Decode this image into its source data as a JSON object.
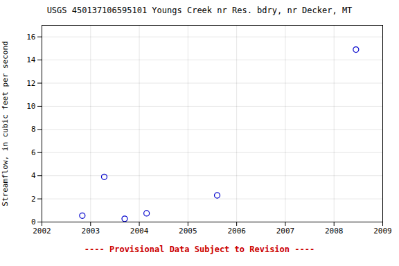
{
  "chart_data": {
    "type": "scatter",
    "title": "USGS 450137106595101 Youngs Creek nr Res. bdry, nr Decker, MT",
    "ylabel": "Streamflow, in cubic feet per second",
    "x": [
      2002.83,
      2003.28,
      2003.7,
      2004.15,
      2005.6,
      2008.45
    ],
    "values": [
      0.55,
      3.9,
      0.28,
      0.75,
      2.3,
      14.9
    ],
    "color": "#0000cc",
    "marker": "circle",
    "xlim": [
      2002,
      2009
    ],
    "xticks": [
      2002,
      2003,
      2004,
      2005,
      2006,
      2007,
      2008,
      2009
    ],
    "ylim": [
      0,
      17
    ],
    "yticks": [
      0,
      2,
      4,
      6,
      8,
      10,
      12,
      14,
      16
    ],
    "grid": true,
    "annotations": [
      {
        "text": "---- Provisional Data Subject to Revision ----",
        "color": "#cc0000"
      }
    ]
  }
}
